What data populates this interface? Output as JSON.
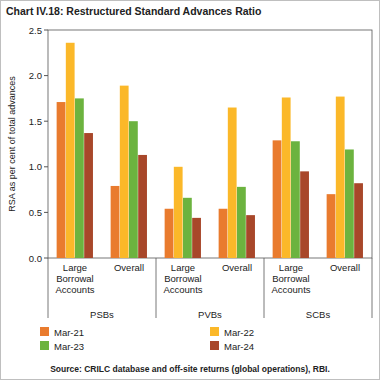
{
  "chart_data": {
    "type": "bar",
    "title": "Chart IV.18: Restructured Standard Advances Ratio",
    "y_label": "RSA as per cent of total advances",
    "source": "Source: CRILC database and off-site returns (global operations), RBI.",
    "categories": [
      "Large Borrowal Accounts",
      "Overall",
      "Large Borrowal Accounts",
      "Overall",
      "Large Borrowal Accounts",
      "Overall"
    ],
    "category_groups": [
      "PSBs",
      "PVBs",
      "SCBs"
    ],
    "series": [
      {
        "name": "Mar-21",
        "color": "#e97b2e",
        "values": [
          1.71,
          0.79,
          0.54,
          0.54,
          1.29,
          0.7
        ]
      },
      {
        "name": "Mar-22",
        "color": "#fbb829",
        "values": [
          2.36,
          1.89,
          1.0,
          1.65,
          1.76,
          1.77
        ]
      },
      {
        "name": "Mar-23",
        "color": "#6cb33f",
        "values": [
          1.75,
          1.5,
          0.66,
          0.78,
          1.28,
          1.19
        ]
      },
      {
        "name": "Mar-24",
        "color": "#a8472a",
        "values": [
          1.37,
          1.13,
          0.44,
          0.47,
          0.95,
          0.82
        ]
      }
    ],
    "ylim": [
      0,
      2.5
    ],
    "yticks": [
      {
        "value": 0,
        "label": "0.0"
      },
      0.5,
      {
        "value": 1,
        "label": "1.0"
      },
      1.5,
      {
        "value": 2,
        "label": "2.0"
      },
      2.5
    ],
    "grid": false,
    "legend": "bottom"
  }
}
